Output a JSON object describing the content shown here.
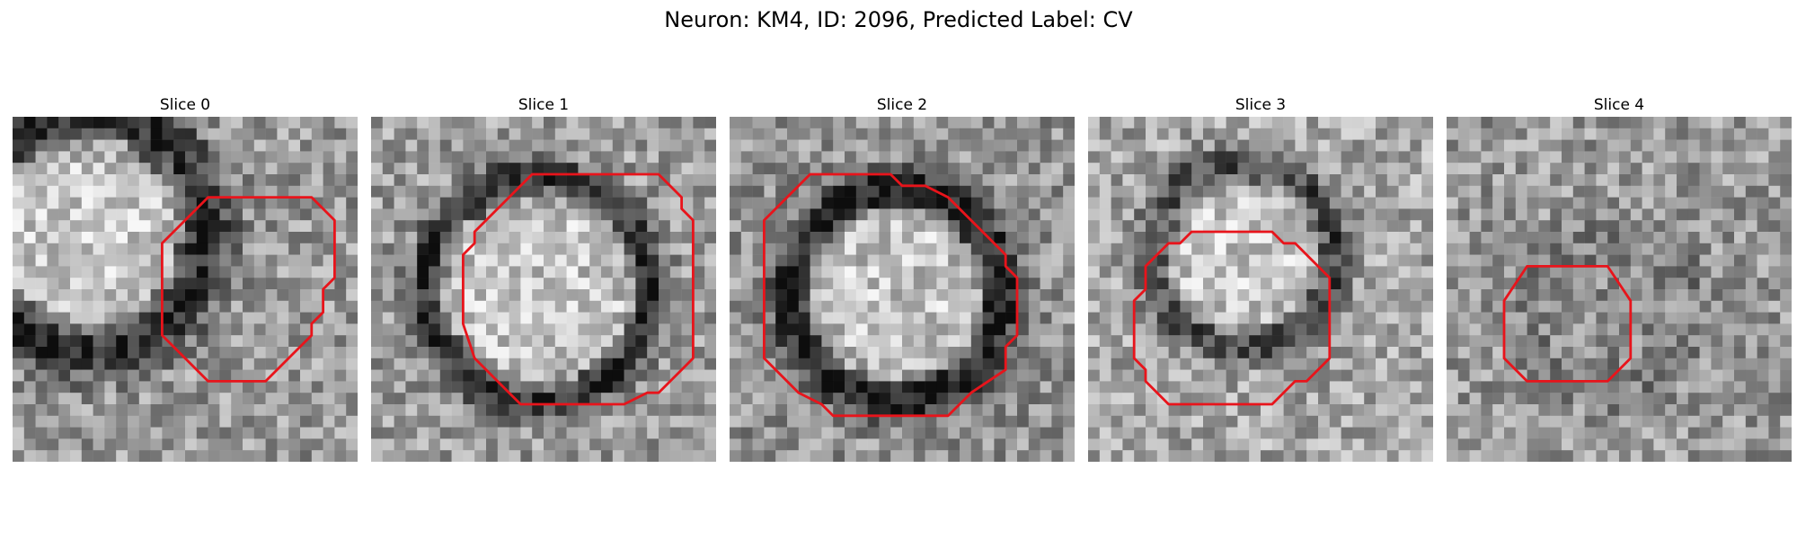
{
  "figure": {
    "title": "Neuron: KM4, ID: 2096, Predicted Label: CV",
    "contour_color": "#e8141b"
  },
  "slices": [
    {
      "title": "Slice 0",
      "grid_size": 30,
      "contour": [
        [
          17,
          7
        ],
        [
          26,
          7
        ],
        [
          28,
          9
        ],
        [
          28,
          14
        ],
        [
          27,
          15
        ],
        [
          27,
          17
        ],
        [
          26,
          18
        ],
        [
          26,
          19
        ],
        [
          22,
          23
        ],
        [
          17,
          23
        ],
        [
          13,
          19
        ],
        [
          13,
          11
        ]
      ]
    },
    {
      "title": "Slice 1",
      "grid_size": 30,
      "contour": [
        [
          14,
          5
        ],
        [
          25,
          5
        ],
        [
          27,
          7
        ],
        [
          27,
          8
        ],
        [
          28,
          9
        ],
        [
          28,
          21
        ],
        [
          25,
          24
        ],
        [
          24,
          24
        ],
        [
          22,
          25
        ],
        [
          13,
          25
        ],
        [
          12,
          24
        ],
        [
          12,
          24
        ],
        [
          9,
          21
        ],
        [
          8,
          18
        ],
        [
          8,
          17
        ],
        [
          8,
          12
        ],
        [
          9,
          11
        ],
        [
          9,
          10
        ],
        [
          11,
          8
        ],
        [
          12,
          7
        ],
        [
          13,
          6
        ]
      ]
    },
    {
      "title": "Slice 2",
      "grid_size": 30,
      "contour": [
        [
          7,
          5
        ],
        [
          14,
          5
        ],
        [
          15,
          6
        ],
        [
          17,
          6
        ],
        [
          19,
          7
        ],
        [
          21,
          9
        ],
        [
          22,
          10
        ],
        [
          24,
          12
        ],
        [
          24,
          13
        ],
        [
          25,
          14
        ],
        [
          25,
          19
        ],
        [
          24,
          20
        ],
        [
          24,
          22
        ],
        [
          21,
          24
        ],
        [
          20,
          25
        ],
        [
          19,
          26
        ],
        [
          9,
          26
        ],
        [
          8,
          25
        ],
        [
          6,
          24
        ],
        [
          3,
          21
        ],
        [
          3,
          9
        ]
      ]
    },
    {
      "title": "Slice 3",
      "grid_size": 30,
      "contour": [
        [
          9,
          10
        ],
        [
          16,
          10
        ],
        [
          17,
          11
        ],
        [
          18,
          11
        ],
        [
          21,
          14
        ],
        [
          21,
          21
        ],
        [
          19,
          23
        ],
        [
          18,
          23
        ],
        [
          16,
          25
        ],
        [
          7,
          25
        ],
        [
          5,
          23
        ],
        [
          5,
          22
        ],
        [
          4,
          21
        ],
        [
          4,
          16
        ],
        [
          5,
          15
        ],
        [
          5,
          13
        ],
        [
          7,
          11
        ],
        [
          8,
          11
        ]
      ]
    },
    {
      "title": "Slice 4",
      "grid_size": 30,
      "contour": [
        [
          7,
          13
        ],
        [
          14,
          13
        ],
        [
          16,
          16
        ],
        [
          16,
          21
        ],
        [
          14,
          23
        ],
        [
          7,
          23
        ],
        [
          5,
          21
        ],
        [
          5,
          16
        ]
      ]
    }
  ]
}
